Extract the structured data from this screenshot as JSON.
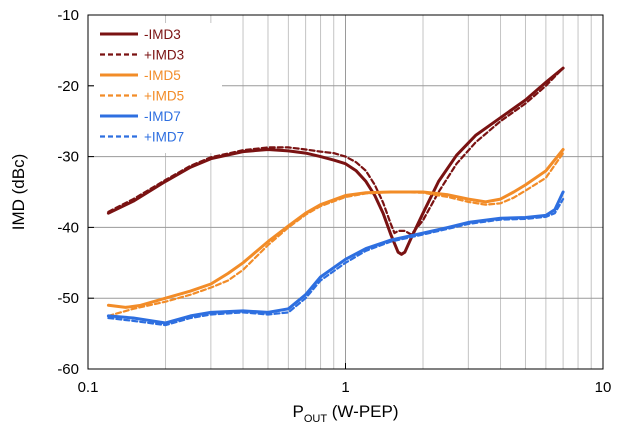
{
  "chart_data": {
    "type": "line",
    "x_scale": "log",
    "xlim": [
      0.1,
      10
    ],
    "ylim": [
      -60,
      -10
    ],
    "x_ticks": [
      0.1,
      1,
      10
    ],
    "x_tick_labels": [
      "0.1",
      "1",
      "10"
    ],
    "y_ticks": [
      -10,
      -20,
      -30,
      -40,
      -50,
      -60
    ],
    "y_tick_labels": [
      "-10",
      "-20",
      "-30",
      "-40",
      "-50",
      "-60"
    ],
    "xlabel_main": "P",
    "xlabel_sub": "OUT",
    "xlabel_rest": " (W-PEP)",
    "ylabel": "IMD (dBc)",
    "grid": true,
    "legend_position": "top-left",
    "series": [
      {
        "name": "-IMD3",
        "color": "#7a1212",
        "dash": "solid",
        "points": [
          [
            0.12,
            -38
          ],
          [
            0.15,
            -36.3
          ],
          [
            0.2,
            -33.5
          ],
          [
            0.25,
            -31.5
          ],
          [
            0.3,
            -30.3
          ],
          [
            0.4,
            -29.3
          ],
          [
            0.5,
            -29
          ],
          [
            0.6,
            -29.2
          ],
          [
            0.7,
            -29.5
          ],
          [
            0.8,
            -30
          ],
          [
            0.9,
            -30.5
          ],
          [
            1.0,
            -31
          ],
          [
            1.1,
            -32
          ],
          [
            1.2,
            -33.5
          ],
          [
            1.3,
            -35.5
          ],
          [
            1.4,
            -38
          ],
          [
            1.5,
            -41
          ],
          [
            1.6,
            -43.5
          ],
          [
            1.65,
            -43.8
          ],
          [
            1.7,
            -43.5
          ],
          [
            1.8,
            -41.5
          ],
          [
            2.0,
            -38
          ],
          [
            2.3,
            -33.5
          ],
          [
            2.7,
            -29.8
          ],
          [
            3.2,
            -27
          ],
          [
            4.0,
            -24.5
          ],
          [
            5.0,
            -22
          ],
          [
            6.0,
            -19.5
          ],
          [
            7.0,
            -17.5
          ]
        ]
      },
      {
        "name": "+IMD3",
        "color": "#7a1212",
        "dash": "dashed",
        "points": [
          [
            0.12,
            -37.8
          ],
          [
            0.15,
            -36
          ],
          [
            0.2,
            -33.3
          ],
          [
            0.25,
            -31.3
          ],
          [
            0.3,
            -30.1
          ],
          [
            0.4,
            -29.1
          ],
          [
            0.5,
            -28.7
          ],
          [
            0.6,
            -28.7
          ],
          [
            0.7,
            -29
          ],
          [
            0.8,
            -29.3
          ],
          [
            0.9,
            -29.5
          ],
          [
            1.0,
            -30
          ],
          [
            1.1,
            -30.8
          ],
          [
            1.2,
            -32
          ],
          [
            1.3,
            -34
          ],
          [
            1.4,
            -36.5
          ],
          [
            1.5,
            -39.5
          ],
          [
            1.55,
            -40.8
          ],
          [
            1.6,
            -40.5
          ],
          [
            1.7,
            -40.5
          ],
          [
            1.8,
            -41
          ],
          [
            1.9,
            -40
          ],
          [
            2.0,
            -39
          ],
          [
            2.3,
            -35
          ],
          [
            2.7,
            -31
          ],
          [
            3.2,
            -28
          ],
          [
            4.0,
            -25
          ],
          [
            5.0,
            -22.5
          ],
          [
            6.0,
            -20
          ],
          [
            7.0,
            -17.5
          ]
        ]
      },
      {
        "name": "-IMD5",
        "color": "#f28c28",
        "dash": "solid",
        "points": [
          [
            0.12,
            -51
          ],
          [
            0.14,
            -51.3
          ],
          [
            0.16,
            -51
          ],
          [
            0.2,
            -50
          ],
          [
            0.25,
            -49
          ],
          [
            0.3,
            -48
          ],
          [
            0.35,
            -46.5
          ],
          [
            0.4,
            -45
          ],
          [
            0.5,
            -42
          ],
          [
            0.6,
            -39.8
          ],
          [
            0.7,
            -38
          ],
          [
            0.8,
            -36.8
          ],
          [
            1.0,
            -35.5
          ],
          [
            1.2,
            -35.1
          ],
          [
            1.5,
            -35
          ],
          [
            2.0,
            -35
          ],
          [
            2.5,
            -35.4
          ],
          [
            3.0,
            -36
          ],
          [
            3.5,
            -36.4
          ],
          [
            4.0,
            -36
          ],
          [
            4.5,
            -35
          ],
          [
            5.0,
            -34
          ],
          [
            6.0,
            -32
          ],
          [
            7.0,
            -29
          ]
        ]
      },
      {
        "name": "+IMD5",
        "color": "#f28c28",
        "dash": "dashed",
        "points": [
          [
            0.12,
            -52.5
          ],
          [
            0.15,
            -51.5
          ],
          [
            0.2,
            -50.5
          ],
          [
            0.25,
            -49.5
          ],
          [
            0.3,
            -48.5
          ],
          [
            0.35,
            -47.5
          ],
          [
            0.4,
            -46
          ],
          [
            0.5,
            -42.5
          ],
          [
            0.6,
            -40
          ],
          [
            0.7,
            -38.2
          ],
          [
            0.8,
            -37
          ],
          [
            1.0,
            -35.7
          ],
          [
            1.2,
            -35.2
          ],
          [
            1.5,
            -35
          ],
          [
            2.0,
            -35.1
          ],
          [
            2.5,
            -35.7
          ],
          [
            3.0,
            -36.4
          ],
          [
            3.5,
            -36.8
          ],
          [
            4.0,
            -36.6
          ],
          [
            4.5,
            -35.8
          ],
          [
            5.0,
            -34.8
          ],
          [
            6.0,
            -33
          ],
          [
            7.0,
            -29.5
          ]
        ]
      },
      {
        "name": "-IMD7",
        "color": "#2e6fe0",
        "dash": "solid",
        "points": [
          [
            0.12,
            -52.5
          ],
          [
            0.15,
            -52.8
          ],
          [
            0.2,
            -53.5
          ],
          [
            0.25,
            -52.5
          ],
          [
            0.3,
            -52
          ],
          [
            0.4,
            -51.8
          ],
          [
            0.5,
            -52
          ],
          [
            0.6,
            -51.5
          ],
          [
            0.7,
            -49.5
          ],
          [
            0.8,
            -47
          ],
          [
            1.0,
            -44.5
          ],
          [
            1.2,
            -43
          ],
          [
            1.5,
            -41.8
          ],
          [
            2.0,
            -40.8
          ],
          [
            2.5,
            -40
          ],
          [
            3.0,
            -39.3
          ],
          [
            4.0,
            -38.7
          ],
          [
            5.0,
            -38.6
          ],
          [
            6.0,
            -38.3
          ],
          [
            6.5,
            -37.5
          ],
          [
            7.0,
            -35
          ]
        ]
      },
      {
        "name": "+IMD7",
        "color": "#2e6fe0",
        "dash": "dashed",
        "points": [
          [
            0.12,
            -52.8
          ],
          [
            0.15,
            -53.2
          ],
          [
            0.2,
            -53.8
          ],
          [
            0.25,
            -52.8
          ],
          [
            0.3,
            -52.3
          ],
          [
            0.4,
            -52
          ],
          [
            0.5,
            -52.3
          ],
          [
            0.6,
            -52
          ],
          [
            0.7,
            -50
          ],
          [
            0.8,
            -47.5
          ],
          [
            1.0,
            -45
          ],
          [
            1.2,
            -43.3
          ],
          [
            1.5,
            -42
          ],
          [
            2.0,
            -41
          ],
          [
            2.5,
            -40.2
          ],
          [
            3.0,
            -39.5
          ],
          [
            4.0,
            -38.9
          ],
          [
            5.0,
            -38.8
          ],
          [
            6.0,
            -38.5
          ],
          [
            6.5,
            -38
          ],
          [
            7.0,
            -36
          ]
        ]
      }
    ]
  }
}
